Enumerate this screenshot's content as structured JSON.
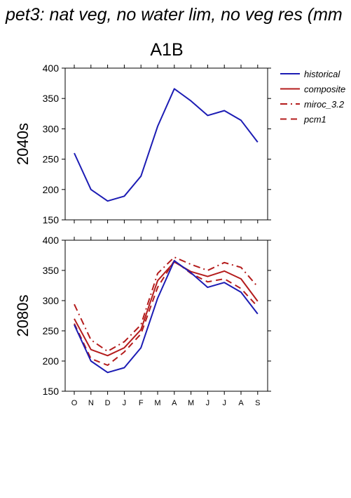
{
  "title": "pet3: nat veg, no water lim, no veg res (mm",
  "chart_data": [
    {
      "type": "line",
      "panel_title": "A1B",
      "ylabel": "2040s",
      "ylim": [
        150,
        400
      ],
      "yticks": [
        150,
        200,
        250,
        300,
        350,
        400
      ],
      "categories": [
        "O",
        "N",
        "D",
        "J",
        "F",
        "M",
        "A",
        "M",
        "J",
        "J",
        "A",
        "S"
      ],
      "show_xtick_labels": false,
      "grid": false,
      "series": [
        {
          "name": "historical",
          "color": "#1c1cb4",
          "dash": "solid",
          "values": [
            260,
            200,
            181,
            189,
            222,
            304,
            366,
            346,
            322,
            330,
            314,
            278
          ]
        }
      ]
    },
    {
      "type": "line",
      "panel_title": "",
      "ylabel": "2080s",
      "ylim": [
        150,
        400
      ],
      "yticks": [
        150,
        200,
        250,
        300,
        350,
        400
      ],
      "categories": [
        "O",
        "N",
        "D",
        "J",
        "F",
        "M",
        "A",
        "M",
        "J",
        "J",
        "A",
        "S"
      ],
      "show_xtick_labels": true,
      "grid": false,
      "series": [
        {
          "name": "historical",
          "color": "#1c1cb4",
          "dash": "solid",
          "values": [
            260,
            200,
            181,
            189,
            222,
            304,
            366,
            346,
            322,
            330,
            314,
            278
          ]
        },
        {
          "name": "composite",
          "color": "#b41c1c",
          "dash": "solid",
          "values": [
            270,
            219,
            209,
            222,
            252,
            333,
            364,
            348,
            340,
            349,
            336,
            299
          ]
        },
        {
          "name": "miroc_3.2",
          "color": "#b41c1c",
          "dash": "dashdot",
          "values": [
            294,
            235,
            216,
            232,
            260,
            345,
            372,
            360,
            350,
            363,
            355,
            323
          ]
        },
        {
          "name": "pcm1",
          "color": "#b41c1c",
          "dash": "dashed",
          "values": [
            262,
            204,
            193,
            215,
            245,
            322,
            366,
            345,
            331,
            336,
            320,
            290
          ]
        }
      ]
    }
  ],
  "legend": {
    "placement": "right",
    "items": [
      {
        "label": "historical",
        "color": "#1c1cb4",
        "dash": "solid"
      },
      {
        "label": "composite",
        "color": "#b41c1c",
        "dash": "solid"
      },
      {
        "label": "miroc_3.2",
        "color": "#b41c1c",
        "dash": "dashdot"
      },
      {
        "label": "pcm1",
        "color": "#b41c1c",
        "dash": "dashed"
      }
    ]
  }
}
